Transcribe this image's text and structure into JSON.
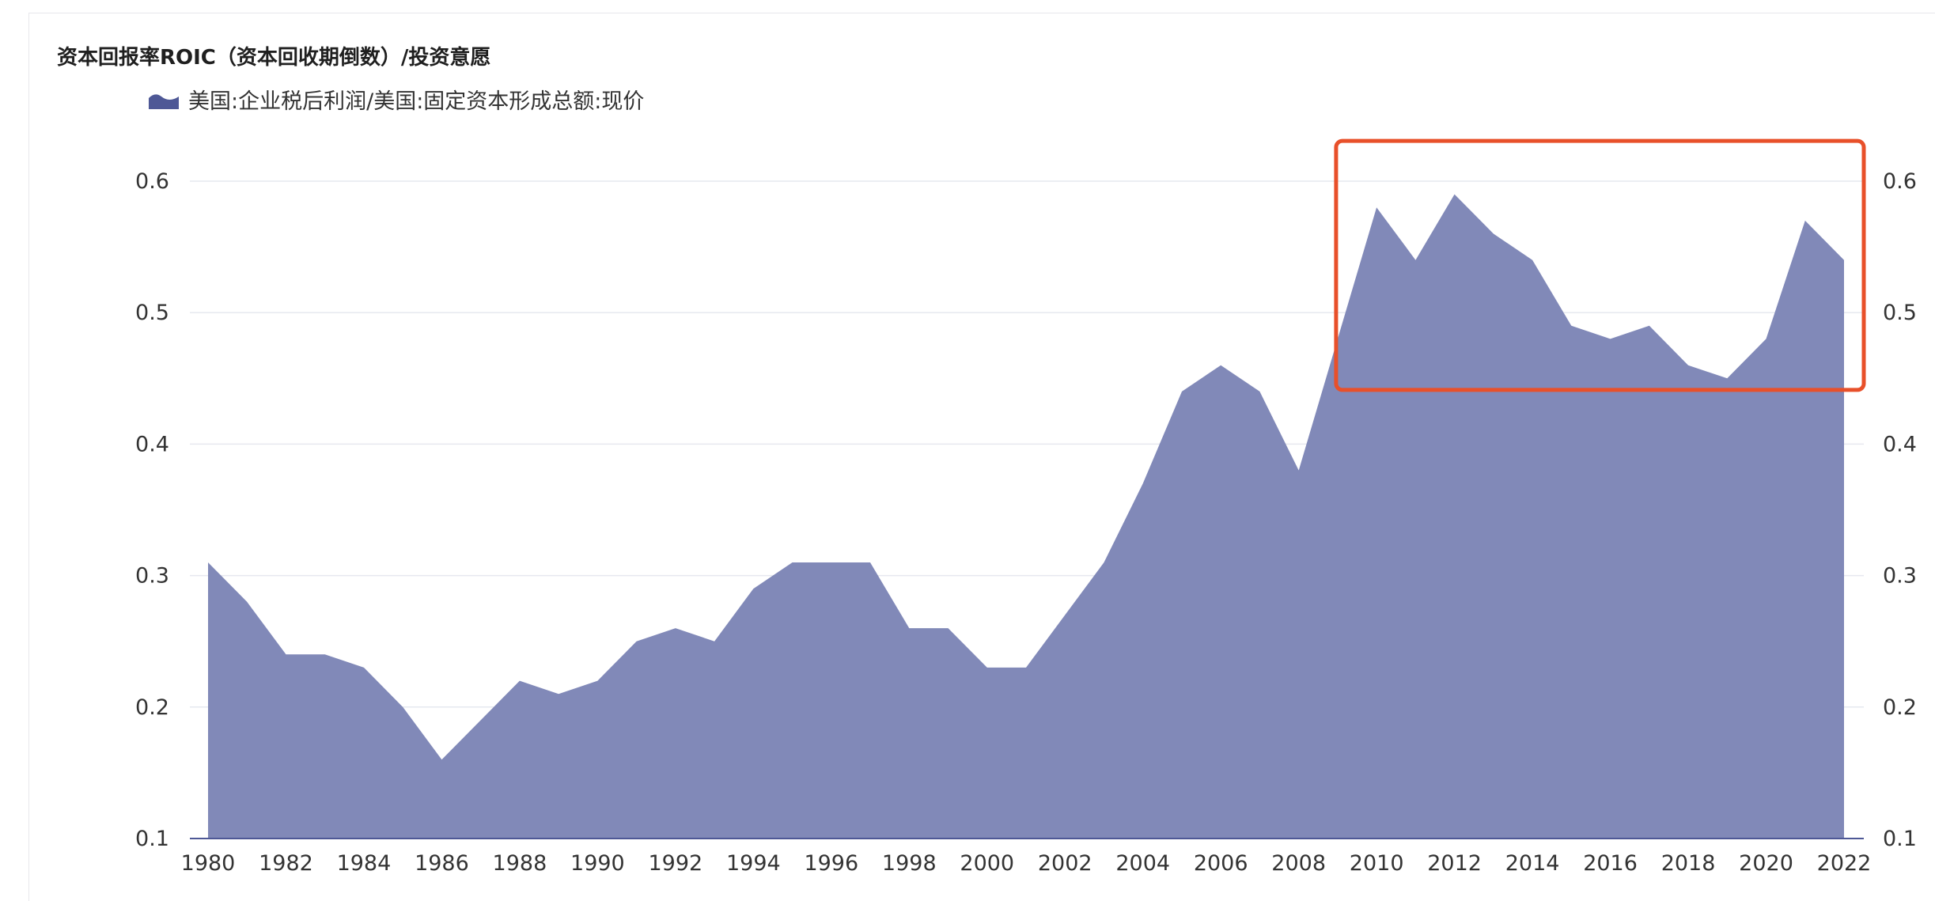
{
  "chart_data": {
    "type": "area",
    "title": "资本回报率ROIC（资本回收期倒数）/投资意愿",
    "series": [
      {
        "name": "美国:企业税后利润/美国:固定资本形成总额:现价",
        "color": "#8189b8",
        "values": [
          0.31,
          0.28,
          0.24,
          0.24,
          0.23,
          0.2,
          0.16,
          0.19,
          0.22,
          0.21,
          0.22,
          0.25,
          0.26,
          0.25,
          0.29,
          0.31,
          0.31,
          0.31,
          0.26,
          0.26,
          0.23,
          0.23,
          0.27,
          0.31,
          0.37,
          0.44,
          0.46,
          0.44,
          0.38,
          0.48,
          0.58,
          0.54,
          0.59,
          0.56,
          0.54,
          0.49,
          0.48,
          0.49,
          0.46,
          0.45,
          0.48,
          0.57,
          0.54
        ]
      }
    ],
    "x": [
      1980,
      1981,
      1982,
      1983,
      1984,
      1985,
      1986,
      1987,
      1988,
      1989,
      1990,
      1991,
      1992,
      1993,
      1994,
      1995,
      1996,
      1997,
      1998,
      1999,
      2000,
      2001,
      2002,
      2003,
      2004,
      2005,
      2006,
      2007,
      2008,
      2009,
      2010,
      2011,
      2012,
      2013,
      2014,
      2015,
      2016,
      2017,
      2018,
      2019,
      2020,
      2021,
      2022
    ],
    "x_tick_labels": [
      "1980",
      "1982",
      "1984",
      "1986",
      "1988",
      "1990",
      "1992",
      "1994",
      "1996",
      "1998",
      "2000",
      "2002",
      "2004",
      "2006",
      "2008",
      "2010",
      "2012",
      "2014",
      "2016",
      "2018",
      "2020",
      "2022"
    ],
    "y_tick_labels": [
      "0.1",
      "0.2",
      "0.3",
      "0.4",
      "0.5",
      "0.6"
    ],
    "ylim": [
      0.1,
      0.6
    ],
    "xlim": [
      1980,
      2022
    ],
    "grid": true,
    "legend_position": "top-left",
    "dual_y_axis": true,
    "highlight": {
      "x_range": [
        2009,
        2022
      ],
      "y_range": [
        0.44,
        0.63
      ],
      "color": "#e8502a"
    }
  }
}
